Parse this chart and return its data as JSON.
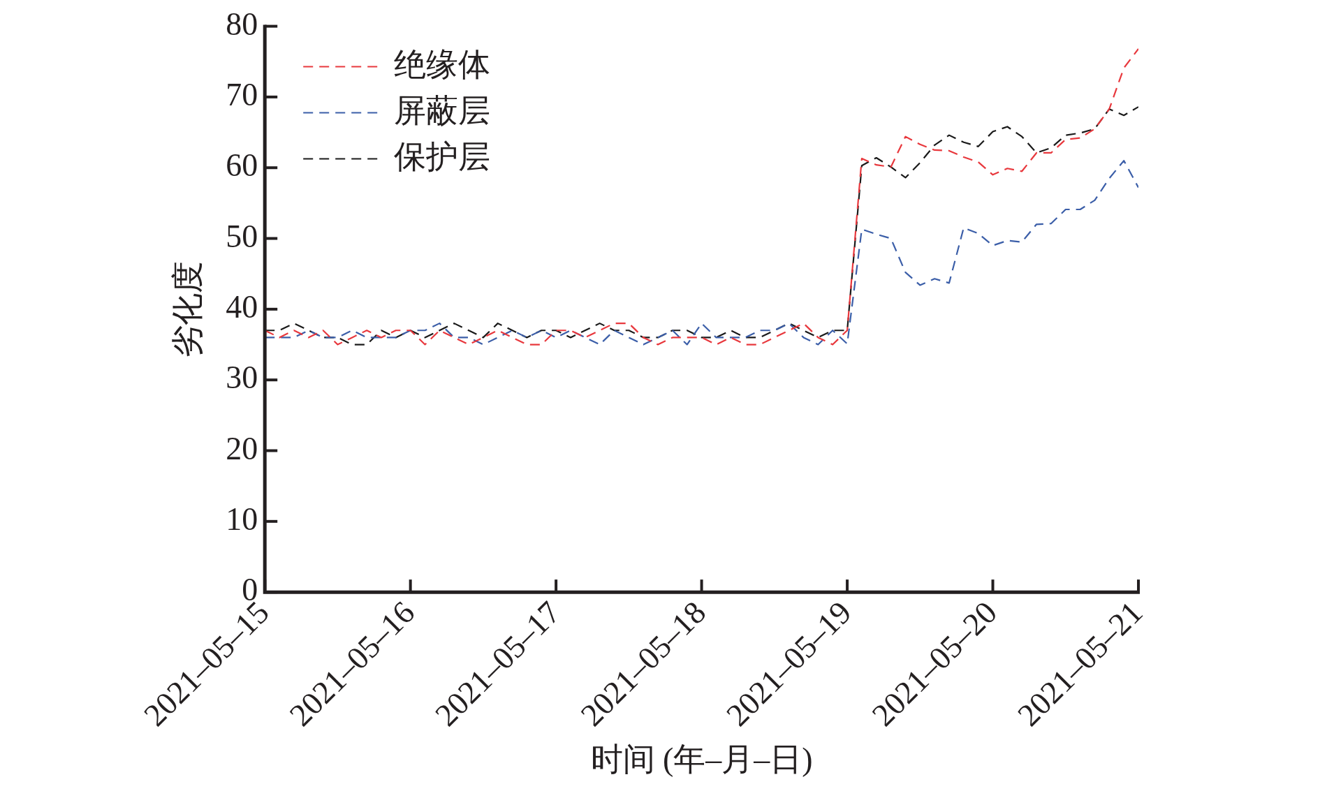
{
  "chart_data": {
    "type": "line",
    "xlabel": "时间 (年–月–日)",
    "ylabel": "劣化度",
    "x": [
      "2021-05-15T00:00",
      "2021-05-15T02:24",
      "2021-05-15T04:48",
      "2021-05-15T07:12",
      "2021-05-15T09:36",
      "2021-05-15T12:00",
      "2021-05-15T14:24",
      "2021-05-15T16:48",
      "2021-05-15T19:12",
      "2021-05-15T21:36",
      "2021-05-16T00:00",
      "2021-05-16T02:24",
      "2021-05-16T04:48",
      "2021-05-16T07:12",
      "2021-05-16T09:36",
      "2021-05-16T12:00",
      "2021-05-16T14:24",
      "2021-05-16T16:48",
      "2021-05-16T19:12",
      "2021-05-16T21:36",
      "2021-05-17T00:00",
      "2021-05-17T02:24",
      "2021-05-17T04:48",
      "2021-05-17T07:12",
      "2021-05-17T09:36",
      "2021-05-17T12:00",
      "2021-05-17T14:24",
      "2021-05-17T16:48",
      "2021-05-17T19:12",
      "2021-05-17T21:36",
      "2021-05-18T00:00",
      "2021-05-18T02:24",
      "2021-05-18T04:48",
      "2021-05-18T07:12",
      "2021-05-18T09:36",
      "2021-05-18T12:00",
      "2021-05-18T14:24",
      "2021-05-18T16:48",
      "2021-05-18T19:12",
      "2021-05-18T21:36",
      "2021-05-19T00:00",
      "2021-05-19T02:24",
      "2021-05-19T04:48",
      "2021-05-19T07:12",
      "2021-05-19T09:36",
      "2021-05-19T12:00",
      "2021-05-19T14:24",
      "2021-05-19T16:48",
      "2021-05-19T19:12",
      "2021-05-19T21:36",
      "2021-05-20T00:00",
      "2021-05-20T02:24",
      "2021-05-20T04:48",
      "2021-05-20T07:12",
      "2021-05-20T09:36",
      "2021-05-20T12:00",
      "2021-05-20T14:24",
      "2021-05-20T16:48",
      "2021-05-20T19:12",
      "2021-05-20T21:36",
      "2021-05-21T00:00"
    ],
    "series": [
      {
        "name": "绝缘体",
        "color": "#e8383d",
        "values": [
          37,
          36,
          37,
          36,
          37,
          35,
          36,
          37,
          36,
          37,
          37,
          35,
          37,
          36,
          35,
          36,
          37,
          36,
          35,
          35,
          37,
          37,
          36,
          37,
          38,
          38,
          36,
          35,
          36,
          36,
          36,
          35,
          36,
          35,
          35,
          36,
          37,
          38,
          36,
          35,
          37,
          61.3,
          60.4,
          60.1,
          64.4,
          63.3,
          62.5,
          62.4,
          61.5,
          60.8,
          59,
          59.9,
          59.5,
          62.1,
          62.1,
          64,
          64.2,
          65.5,
          68.3,
          74.1,
          76.8
        ]
      },
      {
        "name": "屏蔽层",
        "color": "#3b5ea8",
        "values": [
          36,
          36,
          36,
          37,
          36,
          36,
          37,
          36,
          36,
          36,
          37,
          37,
          38,
          36,
          36,
          35,
          36,
          37,
          36,
          37,
          36,
          37,
          36,
          35,
          37,
          36,
          35,
          36,
          37,
          35,
          38,
          36,
          36,
          36,
          37,
          37,
          38,
          36,
          35,
          37,
          35.1,
          51.3,
          50.6,
          50,
          45.2,
          43.4,
          44.3,
          43.7,
          51.5,
          50.7,
          49,
          49.7,
          49.5,
          52,
          52.1,
          54.1,
          54.1,
          55.4,
          58.5,
          61,
          57.2
        ]
      },
      {
        "name": "保护层",
        "color": "#1a1a1a",
        "values": [
          37,
          37,
          38,
          37,
          36,
          36,
          35,
          35,
          37,
          36,
          37,
          36,
          37,
          38,
          37,
          36,
          38,
          37,
          36,
          37,
          37,
          36,
          37,
          38,
          37,
          37,
          36,
          36,
          37,
          37,
          36,
          36,
          37,
          36,
          36,
          37,
          38,
          37,
          36,
          37,
          37,
          60.3,
          61.4,
          60.1,
          58.6,
          60.7,
          63.2,
          64.6,
          63.6,
          63,
          65.1,
          65.8,
          64.4,
          62.1,
          62.8,
          64.6,
          64.9,
          65.5,
          68.3,
          67.4,
          68.6
        ]
      }
    ],
    "xlim": [
      "2021-05-15",
      "2021-05-21"
    ],
    "xticks": [
      {
        "value": "2021-05-15",
        "label": "2021–05–15"
      },
      {
        "value": "2021-05-16",
        "label": "2021–05–16"
      },
      {
        "value": "2021-05-17",
        "label": "2021–05–17"
      },
      {
        "value": "2021-05-18",
        "label": "2021–05–18"
      },
      {
        "value": "2021-05-19",
        "label": "2021–05–19"
      },
      {
        "value": "2021-05-20",
        "label": "2021–05–20"
      },
      {
        "value": "2021-05-21",
        "label": "2021–05–21"
      }
    ],
    "ylim": [
      0,
      80
    ],
    "yticks": [
      0,
      10,
      20,
      30,
      40,
      50,
      60,
      70,
      80
    ],
    "legend": "top left",
    "grid": false,
    "marker": "none",
    "line_style": "dashed"
  }
}
